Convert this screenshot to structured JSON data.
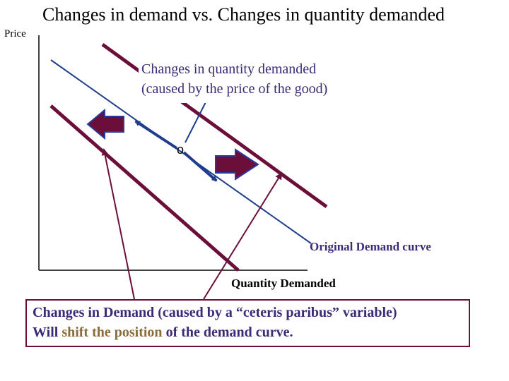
{
  "title": "Changes in demand vs. Changes in quantity demanded",
  "axes": {
    "y_label": "Price",
    "x_label": "Quantity Demanded"
  },
  "quantity_demanded_label": {
    "line1": "Changes in quantity demanded",
    "line2": "(caused by the price of the good)"
  },
  "original_curve_label": "Original Demand curve",
  "point_marker": "o",
  "note": {
    "line1": "Changes in Demand (caused by a “ceteris paribus” variable)",
    "line2_before": "Will ",
    "line2_highlight": "shift the position",
    "line2_after": " of the demand curve."
  },
  "colors": {
    "original_curve": "#1f3d8c",
    "shifted_curves": "#6b0f3a",
    "arrow_fill": "#6b0f3a",
    "arrow_stroke": "#2a3a9a",
    "text_blue": "#3a2a78",
    "highlight": "#8a6d3b"
  }
}
